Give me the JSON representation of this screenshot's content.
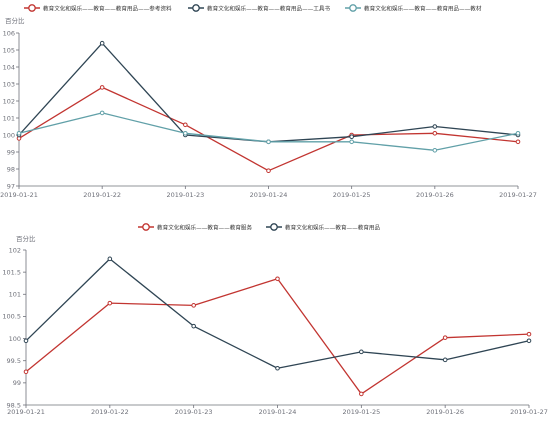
{
  "chart_data": [
    {
      "type": "line",
      "ylabel": "百分比",
      "categories": [
        "2019-01-21",
        "2019-01-22",
        "2019-01-23",
        "2019-01-24",
        "2019-01-25",
        "2019-01-26",
        "2019-01-27"
      ],
      "ylim": [
        97,
        106
      ],
      "yticks": [
        "97",
        "98",
        "99",
        "100",
        "101",
        "102",
        "103",
        "104",
        "105",
        "106"
      ],
      "legend_position": "top-center",
      "series": [
        {
          "name": "教育文化和娱乐——教育——教育用品——参考资料",
          "color": "#c23531",
          "values": [
            99.8,
            102.8,
            100.6,
            97.9,
            100.0,
            100.1,
            99.6
          ]
        },
        {
          "name": "教育文化和娱乐——教育——教育用品——工具书",
          "color": "#2f4554",
          "values": [
            100.0,
            105.4,
            100.0,
            99.6,
            99.9,
            100.5,
            100.0
          ]
        },
        {
          "name": "教育文化和娱乐——教育——教育用品——教材",
          "color": "#61a0a8",
          "values": [
            100.1,
            101.3,
            100.1,
            99.6,
            99.6,
            99.1,
            100.1
          ]
        }
      ]
    },
    {
      "type": "line",
      "ylabel": "百分比",
      "categories": [
        "2019-01-21",
        "2019-01-22",
        "2019-01-23",
        "2019-01-24",
        "2019-01-25",
        "2019-01-26",
        "2019-01-27"
      ],
      "ylim": [
        98.5,
        102
      ],
      "yticks": [
        "98.5",
        "99",
        "99.5",
        "100",
        "100.5",
        "101",
        "101.5",
        "102"
      ],
      "legend_position": "top-center",
      "series": [
        {
          "name": "教育文化和娱乐——教育——教育服务",
          "color": "#c23531",
          "values": [
            99.25,
            100.8,
            100.75,
            101.35,
            98.75,
            100.02,
            100.1
          ]
        },
        {
          "name": "教育文化和娱乐——教育——教育用品",
          "color": "#2f4554",
          "values": [
            99.95,
            101.8,
            100.28,
            99.33,
            99.7,
            99.52,
            99.95
          ]
        }
      ]
    }
  ]
}
